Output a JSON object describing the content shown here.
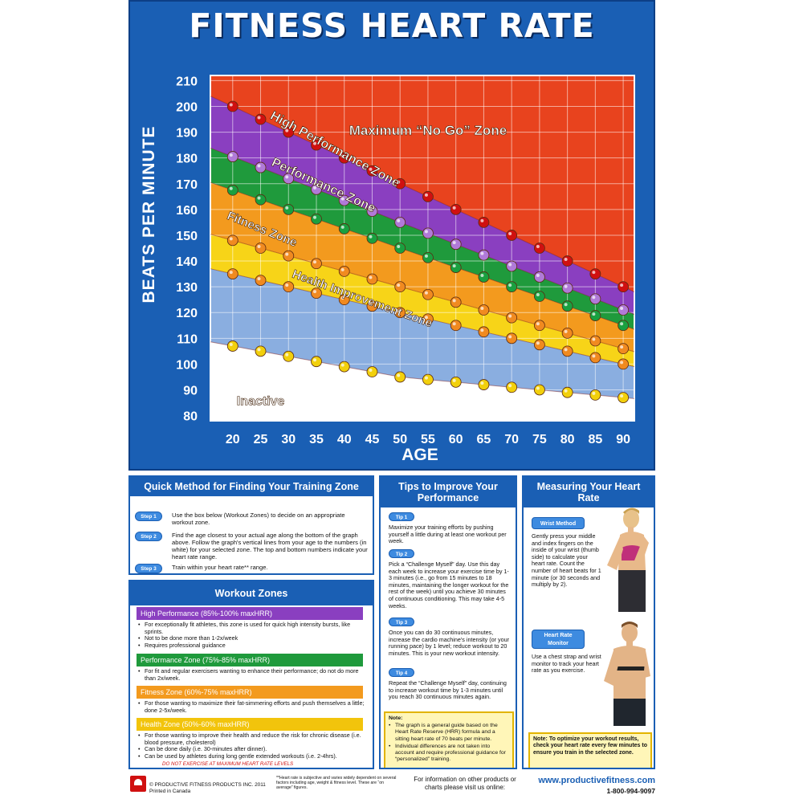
{
  "poster_title": "FITNESS HEART RATE",
  "chart_data": {
    "type": "area",
    "title": "FITNESS HEART RATE",
    "xlabel": "AGE",
    "ylabel": "BEATS PER MINUTE",
    "x": [
      20,
      25,
      30,
      35,
      40,
      45,
      50,
      55,
      60,
      65,
      70,
      75,
      80,
      85,
      90
    ],
    "x_ticks": [
      "20",
      "25",
      "30",
      "35",
      "40",
      "45",
      "50",
      "55",
      "60",
      "65",
      "70",
      "75",
      "80",
      "85",
      "90"
    ],
    "y_ticks": [
      "210",
      "200",
      "190",
      "180",
      "170",
      "160",
      "150",
      "140",
      "130",
      "120",
      "110",
      "100",
      "90",
      "80"
    ],
    "xlim": [
      16,
      92
    ],
    "ylim": [
      78,
      212
    ],
    "grid": true,
    "boundaries": [
      {
        "name": "max_hr",
        "values": [
          200,
          195,
          190,
          185,
          180,
          175,
          170,
          165,
          160,
          155,
          150,
          145,
          140,
          135,
          130
        ],
        "marker_color": "#d01010"
      },
      {
        "name": "85_pct",
        "values": [
          180.5,
          176.3,
          172.0,
          167.8,
          163.5,
          159.3,
          155.0,
          150.8,
          146.5,
          142.3,
          138.0,
          133.8,
          129.5,
          125.3,
          121.0
        ],
        "marker_color": "#b07ad8"
      },
      {
        "name": "75_pct",
        "values": [
          167.5,
          163.8,
          160.0,
          156.3,
          152.5,
          148.8,
          145.0,
          141.3,
          137.5,
          133.8,
          130.0,
          126.3,
          122.5,
          118.8,
          115.0
        ],
        "marker_color": "#1aa040"
      },
      {
        "name": "60_pct",
        "values": [
          148.0,
          145.0,
          142.0,
          139.0,
          136.0,
          133.0,
          130.0,
          127.0,
          124.0,
          121.0,
          118.0,
          115.0,
          112.0,
          109.0,
          106.0
        ],
        "marker_color": "#f08a20"
      },
      {
        "name": "50_pct",
        "values": [
          135.0,
          132.5,
          130.0,
          127.5,
          125.0,
          122.5,
          120.0,
          117.5,
          115.0,
          112.5,
          110.0,
          107.5,
          105.0,
          102.5,
          100.0
        ],
        "marker_color": "#f08a20"
      },
      {
        "name": "resting_floor",
        "values": [
          107,
          105,
          103,
          101,
          99,
          97,
          95,
          94,
          93,
          92,
          91,
          90,
          89,
          88,
          87
        ],
        "marker_color": "#f2d00c"
      }
    ],
    "zones": [
      {
        "label": "Maximum “No Go” Zone",
        "color": "#e8431e"
      },
      {
        "label": "High Performance Zone",
        "color": "#8a3fc0"
      },
      {
        "label": "Performance Zone",
        "color": "#1f9a3c"
      },
      {
        "label": "Fitness Zone",
        "color": "#f39a1e"
      },
      {
        "label": "Health Improvement Zone",
        "color": "#f7d418"
      },
      {
        "label": "Inactive",
        "color": "#8aaee0"
      }
    ]
  },
  "quick_method": {
    "title": "Quick Method for Finding Your Training Zone",
    "steps": [
      {
        "label": "Step 1",
        "text": "Use the box below (Workout Zones) to decide on an appropriate workout zone."
      },
      {
        "label": "Step 2",
        "text": "Find the age closest to your actual age along the bottom of the graph above. Follow the graph's vertical lines from your age to the numbers (in white) for your selected zone. The top and bottom numbers indicate your heart rate range."
      },
      {
        "label": "Step 3",
        "text": "Train within your heart rate** range."
      }
    ]
  },
  "workout_zones": {
    "title": "Workout Zones",
    "zones": [
      {
        "label": "High Performance (85%-100% maxHRR)",
        "color": "#8a3fc0",
        "bullets": [
          "For exceptionally fit athletes, this zone is used for quick high intensity bursts, like sprints.",
          "Not to be done more than 1-2x/week",
          "Requires professional guidance"
        ]
      },
      {
        "label": "Performance Zone (75%-85% maxHRR)",
        "color": "#1f9a3c",
        "bullets": [
          "For fit and regular exercisers wanting to enhance their performance; do not do more than 2x/week."
        ]
      },
      {
        "label": "Fitness Zone (60%-75% maxHRR)",
        "color": "#f39a1e",
        "bullets": [
          "For those wanting to maximize their fat-simmering efforts and push themselves a little; done 2-5x/week."
        ]
      },
      {
        "label": "Health Zone (50%-60% maxHRR)",
        "color": "#f2c40c",
        "bullets": [
          "For those wanting to improve their health and reduce the risk for chronic disease (i.e. blood pressure, cholesterol)",
          "Can be done daily (i.e. 30-minutes after dinner).",
          "Can be used by athletes during long gentle extended workouts (i.e. 2-4hrs)."
        ]
      }
    ],
    "warning": "DO NOT EXERCISE AT MAXIMUM HEART RATE LEVELS"
  },
  "tips": {
    "title": "Tips to Improve Your Performance",
    "items": [
      {
        "label": "Tip 1",
        "text": "Maximize your training efforts by pushing yourself a little during at least one workout per week."
      },
      {
        "label": "Tip 2",
        "text": "Pick a “Challenge Myself” day. Use this day each week to increase your exercise time by 1-3 minutes (i.e., go from 15 minutes to 18 minutes, maintaining the longer workout for the rest of the week) until you achieve 30 minutes of continuous conditioning. This may take 4-5 weeks."
      },
      {
        "label": "Tip 3",
        "text": "Once you can do 30 continuous minutes, increase the cardio machine's intensity (or your running pace) by 1 level; reduce workout to 20 minutes. This is your new workout intensity."
      },
      {
        "label": "Tip 4",
        "text": "Repeat the “Challenge Myself” day, continuing to increase workout time by 1-3 minutes until you reach 30 continuous minutes again."
      }
    ],
    "note": {
      "head": "Note:",
      "items": [
        "The graph is a general guide based on the Heart Rate Reserve (HRR) formula and a sitting heart rate of 70 beats per minute.",
        "Individual differences are not taken into account and require professional guidance for “personalized” training."
      ]
    }
  },
  "measuring": {
    "title": "Measuring Your Heart Rate",
    "wrist_label": "Wrist Method",
    "wrist_text": "Gently press your middle and index fingers on the inside of your wrist (thumb side) to calculate your heart rate. Count the number of heart beats for 1 minute (or 30 seconds and multiply by 2).",
    "monitor_label_1": "Heart Rate",
    "monitor_label_2": "Monitor",
    "monitor_text": "Use a chest strap and wrist monitor to track your heart rate as you exercise.",
    "note": "Note: To optimize your workout results, check your heart rate every few minutes to ensure you train in the selected zone."
  },
  "footer": {
    "copyright": "© PRODUCTIVE FITNESS PRODUCTS INC. 2011",
    "printed": "Printed in Canada",
    "fine_print": "**Heart rate is subjective and varies widely dependent on several factors including age, weight & fitness level. These are “on average” figures.",
    "info": "For information on other products or charts please visit us online:",
    "web": "www.productivefitness.com",
    "phone": "1-800-994-9097"
  }
}
